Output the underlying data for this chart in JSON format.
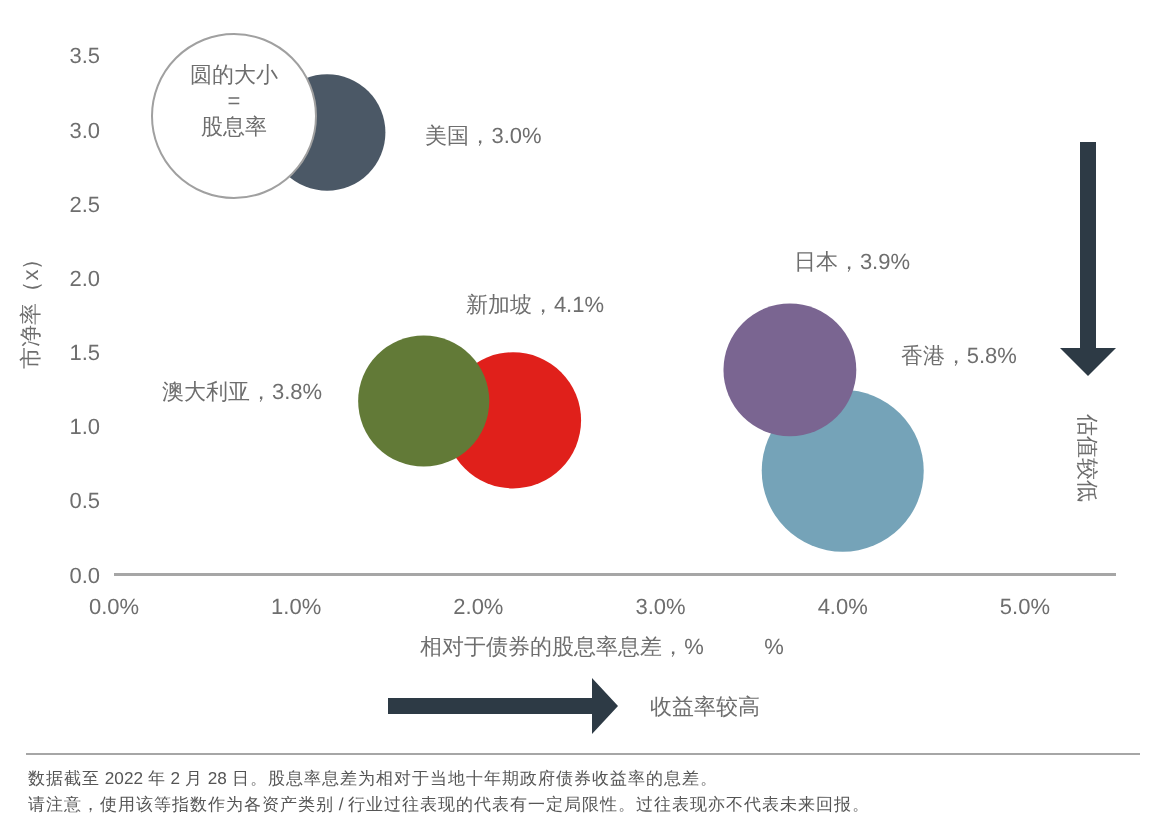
{
  "chart_data": {
    "type": "bubble",
    "x": [
      2.19,
      1.7,
      4.0,
      3.71,
      1.17
    ],
    "values": [
      1.04,
      1.17,
      0.7,
      1.38,
      2.98
    ],
    "sizes": [
      4.1,
      3.8,
      5.8,
      3.9,
      3.0
    ],
    "colors": [
      "#e0201b",
      "#627a37",
      "#75a3b8",
      "#7a6591",
      "#4b5866"
    ],
    "value_labels": [
      "新加坡，4.1%",
      "澳大利亚，3.8%",
      "香港，5.8%",
      "日本，3.9%",
      "美国，3.0%"
    ],
    "xlabel": "相对于债券的股息率息差，%",
    "ylabel": "市净率（x）",
    "xlim": [
      0,
      5.5
    ],
    "ylim": [
      0,
      3.5
    ],
    "xticks": [
      {
        "value": 0,
        "label": "0.0%"
      },
      {
        "value": 1,
        "label": "1.0%"
      },
      {
        "value": 2,
        "label": "2.0%"
      },
      {
        "value": 3,
        "label": "3.0%"
      },
      {
        "value": 4,
        "label": "4.0%"
      },
      {
        "value": 5,
        "label": "5.0%"
      }
    ],
    "yticks": [
      {
        "value": 0,
        "label": "0.0"
      },
      {
        "value": 0.5,
        "label": "0.5"
      },
      {
        "value": 1,
        "label": "1.0"
      },
      {
        "value": 1.5,
        "label": "1.5"
      },
      {
        "value": 2,
        "label": "2.0"
      },
      {
        "value": 2.5,
        "label": "2.5"
      },
      {
        "value": 3,
        "label": "3.0"
      },
      {
        "value": 3.5,
        "label": "3.5"
      }
    ],
    "annotations": [
      "圆的大小\n=\n股息率",
      "%",
      "收益率较高",
      "估值较低",
      "数据截至 2022 年 2 月 28 日。股息率息差为相对于当地十年期政府债券收益率的息差。",
      "请注意，使用该等指数作为各资产类别 / 行业过往表现的代表有一定局限性。过往表现亦不代表未来回报。"
    ]
  }
}
